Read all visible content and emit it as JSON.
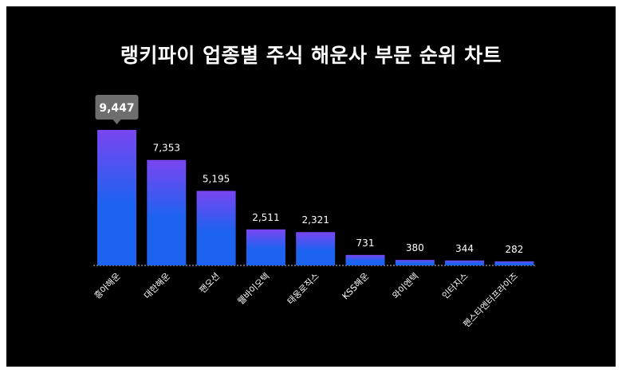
{
  "chart_data": {
    "type": "bar",
    "title": "랭키파이 업종별 주식 해운사 부문 순위 차트",
    "categories": [
      "흥아해운",
      "대한해운",
      "팬오션",
      "웰바이오텍",
      "태웅로직스",
      "KSS해운",
      "와이엔텍",
      "인터지스",
      "펜스타엔터프라이즈"
    ],
    "values": [
      9447,
      7353,
      5195,
      2511,
      2321,
      731,
      380,
      344,
      282
    ],
    "value_labels": [
      "9,447",
      "7,353",
      "5,195",
      "2,511",
      "2,321",
      "731",
      "380",
      "344",
      "282"
    ],
    "highlight_index": 0,
    "ylim": [
      0,
      9447
    ],
    "grid": false,
    "legend": "none",
    "colors": {
      "bar_top": "#7a45f0",
      "bar_bottom": "#1c63f0",
      "background": "#000000",
      "text": "#ffffff",
      "highlight_box": "#6e6e6e"
    }
  }
}
